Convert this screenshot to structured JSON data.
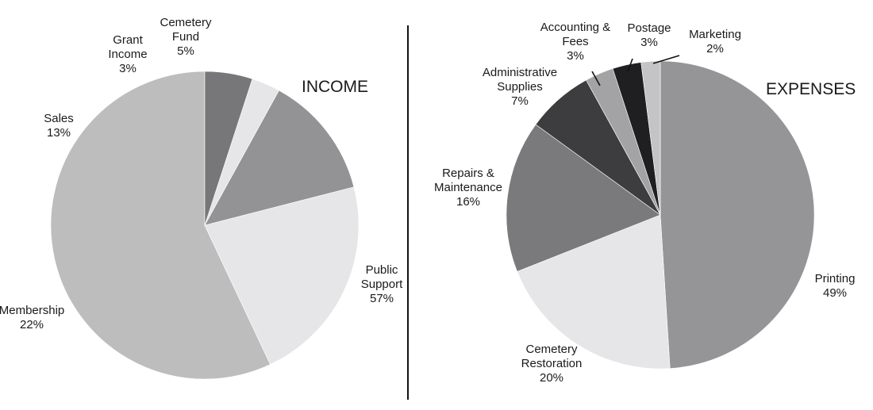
{
  "chart_data": [
    {
      "type": "pie",
      "title": "INCOME",
      "slices": [
        {
          "label": [
            "Public",
            "Support"
          ],
          "value": 57,
          "pct": "57%",
          "color": "#bdbdbd"
        },
        {
          "label": [
            "Membership"
          ],
          "value": 22,
          "pct": "22%",
          "color": "#e6e6e8"
        },
        {
          "label": [
            "Sales"
          ],
          "value": 13,
          "pct": "13%",
          "color": "#939396"
        },
        {
          "label": [
            "Grant",
            "Income"
          ],
          "value": 3,
          "pct": "3%",
          "color": "#e6e6e8"
        },
        {
          "label": [
            "Cemetery",
            "Fund"
          ],
          "value": 5,
          "pct": "5%",
          "color": "#77777a"
        }
      ]
    },
    {
      "type": "pie",
      "title": "EXPENSES",
      "slices": [
        {
          "label": [
            "Printing"
          ],
          "value": 49,
          "pct": "49%",
          "color": "#959598"
        },
        {
          "label": [
            "Cemetery",
            "Restoration"
          ],
          "value": 20,
          "pct": "20%",
          "color": "#e6e6e8"
        },
        {
          "label": [
            "Repairs &",
            "Maintenance"
          ],
          "value": 16,
          "pct": "16%",
          "color": "#7a7a7d"
        },
        {
          "label": [
            "Administrative",
            "Supplies"
          ],
          "value": 7,
          "pct": "7%",
          "color": "#3d3d3f"
        },
        {
          "label": [
            "Accounting &",
            "Fees"
          ],
          "value": 3,
          "pct": "3%",
          "color": "#a3a3a6"
        },
        {
          "label": [
            "Postage"
          ],
          "value": 3,
          "pct": "3%",
          "color": "#1f1f21"
        },
        {
          "label": [
            "Marketing"
          ],
          "value": 2,
          "pct": "2%",
          "color": "#c4c4c7"
        }
      ]
    }
  ]
}
